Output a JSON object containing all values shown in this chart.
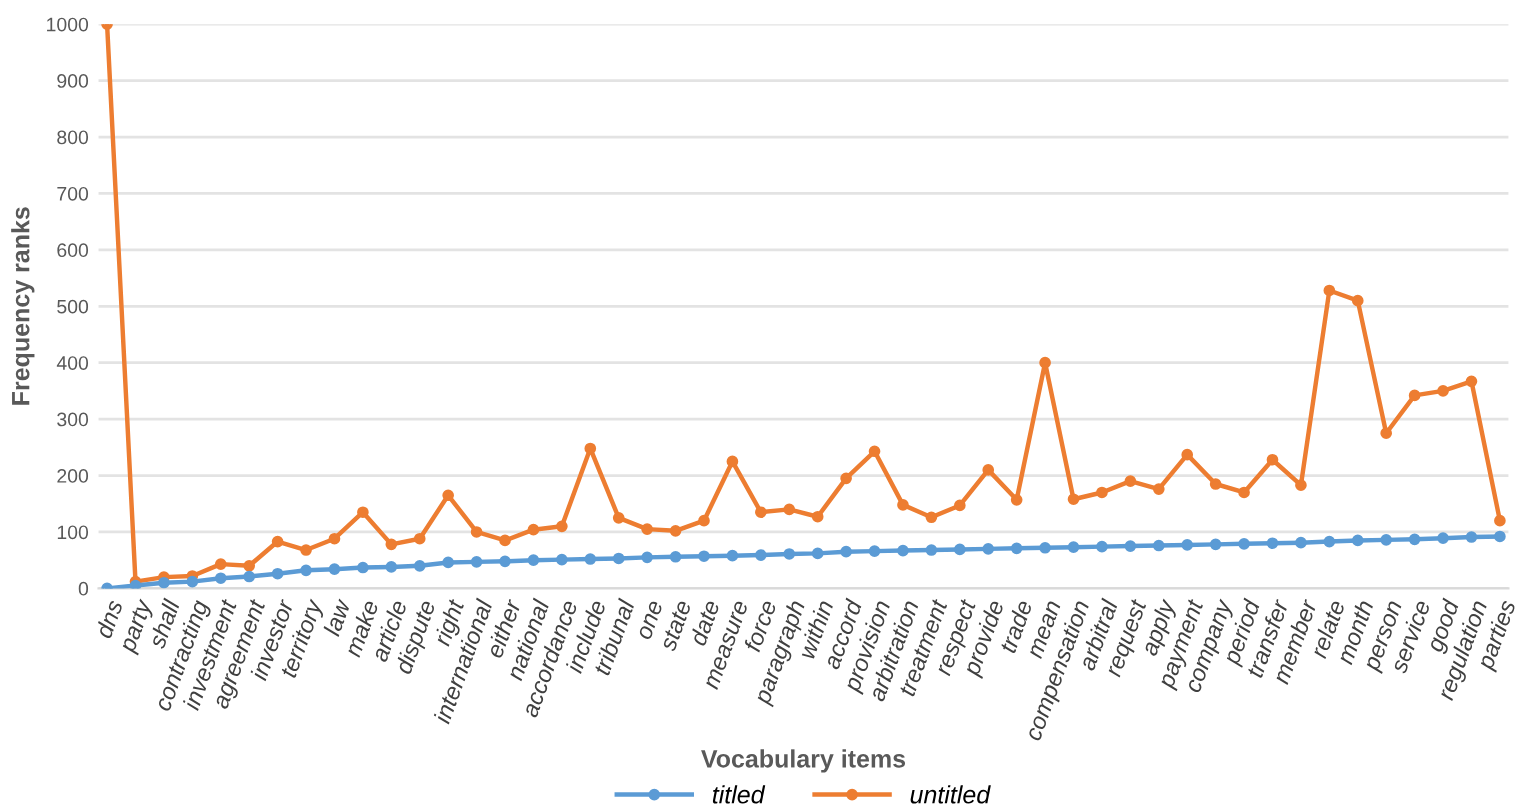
{
  "chart_data": {
    "type": "line",
    "xlabel": "Vocabulary items",
    "ylabel": "Frequency ranks",
    "categories": [
      "dns",
      "party",
      "shall",
      "contracting",
      "investment",
      "agreement",
      "investor",
      "territory",
      "law",
      "make",
      "article",
      "dispute",
      "right",
      "international",
      "either",
      "national",
      "accordance",
      "include",
      "tribunal",
      "one",
      "state",
      "date",
      "measure",
      "force",
      "paragraph",
      "within",
      "accord",
      "provision",
      "arbitration",
      "treatment",
      "respect",
      "provide",
      "trade",
      "mean",
      "compensation",
      "arbitral",
      "request",
      "apply",
      "payment",
      "company",
      "period",
      "transfer",
      "member",
      "relate",
      "month",
      "person",
      "service",
      "good",
      "regulation",
      "parties"
    ],
    "series": [
      {
        "name": "titled",
        "color": "#5b9bd5",
        "values": [
          0,
          5,
          10,
          12,
          18,
          21,
          26,
          32,
          34,
          37,
          38,
          40,
          46,
          47,
          48,
          50,
          51,
          52,
          53,
          55,
          56,
          57,
          58,
          59,
          61,
          62,
          65,
          66,
          67,
          68,
          69,
          70,
          71,
          72,
          73,
          74,
          75,
          76,
          77,
          78,
          79,
          80,
          81,
          83,
          85,
          86,
          87,
          89,
          91,
          92
        ]
      },
      {
        "name": "untitled",
        "color": "#ed7d31",
        "values": [
          1000,
          12,
          20,
          22,
          43,
          40,
          83,
          68,
          88,
          135,
          78,
          88,
          165,
          100,
          85,
          104,
          110,
          248,
          125,
          105,
          102,
          120,
          225,
          135,
          140,
          127,
          195,
          243,
          148,
          126,
          147,
          210,
          157,
          400,
          158,
          170,
          190,
          176,
          237,
          185,
          170,
          228,
          183,
          528,
          510,
          275,
          342,
          350,
          367,
          120
        ]
      }
    ],
    "ylim": [
      0,
      1000
    ],
    "yticks": [
      0,
      100,
      200,
      300,
      400,
      500,
      600,
      700,
      800,
      900,
      1000
    ],
    "grid": "y",
    "legend": "bottom",
    "marker": "circle",
    "line_style": "solid"
  }
}
